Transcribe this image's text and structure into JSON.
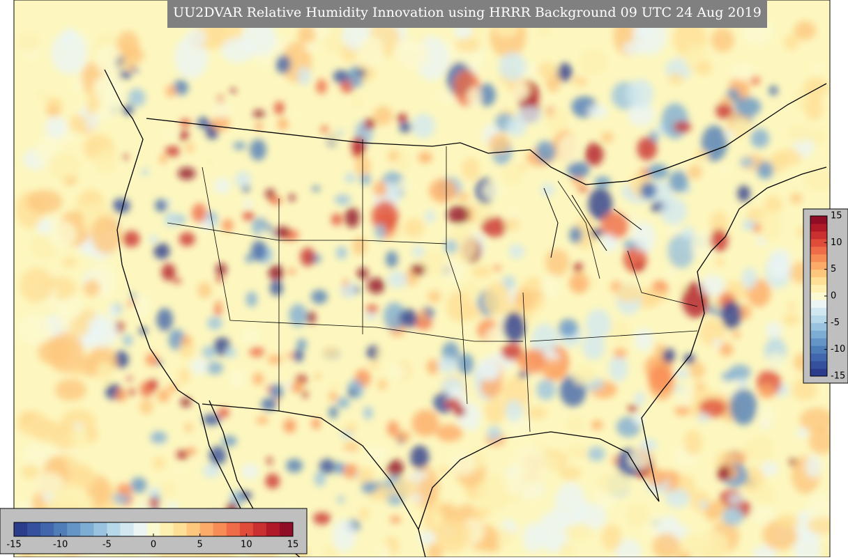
{
  "title": "UU2DVAR Relative Humidity Innovation using HRRR Background 09 UTC 24 Aug 2019",
  "colorbar_right": {
    "range": [
      -15,
      15
    ],
    "ticks": [
      15,
      10,
      5,
      0,
      -5,
      -10,
      -15
    ]
  },
  "colorbar_bottom": {
    "range": [
      -15,
      15
    ],
    "ticks": [
      -15,
      -10,
      -5,
      0,
      5,
      10,
      15
    ]
  },
  "palette": [
    "#2c3c8c",
    "#35509c",
    "#4266ab",
    "#4f7db8",
    "#6495c6",
    "#7eadd3",
    "#9ac3df",
    "#b6d8e9",
    "#d2e8f0",
    "#ebf5f4",
    "#fbf9d0",
    "#fdf0b0",
    "#fedf96",
    "#fdc77e",
    "#fcab68",
    "#f78d56",
    "#ee6c47",
    "#df4d3a",
    "#c9302f",
    "#b01a28",
    "#8f0d25"
  ]
}
